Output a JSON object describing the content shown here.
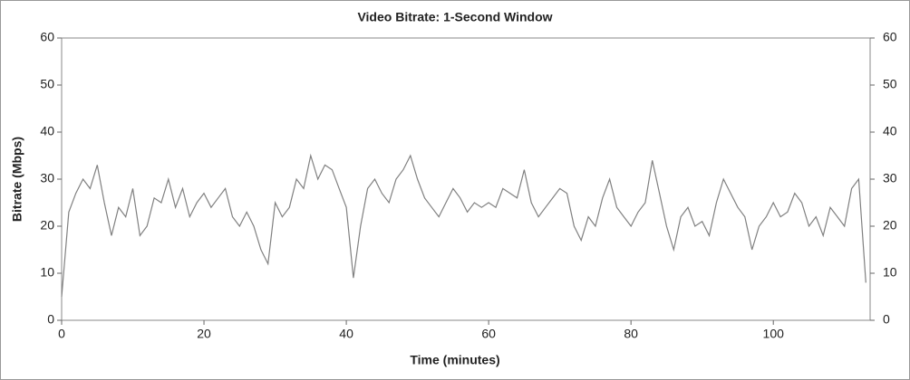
{
  "chart_data": {
    "type": "line",
    "title": "Video Bitrate: 1-Second Window",
    "xlabel": "Time (minutes)",
    "ylabel": "Bitrate (Mbps)",
    "x": [
      0,
      1,
      2,
      3,
      4,
      5,
      6,
      7,
      8,
      9,
      10,
      11,
      12,
      13,
      14,
      15,
      16,
      17,
      18,
      19,
      20,
      21,
      22,
      23,
      24,
      25,
      26,
      27,
      28,
      29,
      30,
      31,
      32,
      33,
      34,
      35,
      36,
      37,
      38,
      39,
      40,
      41,
      42,
      43,
      44,
      45,
      46,
      47,
      48,
      49,
      50,
      51,
      52,
      53,
      54,
      55,
      56,
      57,
      58,
      59,
      60,
      61,
      62,
      63,
      64,
      65,
      66,
      67,
      68,
      69,
      70,
      71,
      72,
      73,
      74,
      75,
      76,
      77,
      78,
      79,
      80,
      81,
      82,
      83,
      84,
      85,
      86,
      87,
      88,
      89,
      90,
      91,
      92,
      93,
      94,
      95,
      96,
      97,
      98,
      99,
      100,
      101,
      102,
      103,
      104,
      105,
      106,
      107,
      108,
      109,
      110,
      111,
      112,
      113
    ],
    "series": [
      {
        "name": "Bitrate",
        "color": "#808080",
        "values": [
          5,
          23,
          27,
          30,
          28,
          33,
          25,
          18,
          24,
          22,
          28,
          18,
          20,
          26,
          25,
          30,
          24,
          28,
          22,
          25,
          27,
          24,
          26,
          28,
          22,
          20,
          23,
          20,
          15,
          12,
          25,
          22,
          24,
          30,
          28,
          35,
          30,
          33,
          32,
          28,
          24,
          9,
          20,
          28,
          30,
          27,
          25,
          30,
          32,
          35,
          30,
          26,
          24,
          22,
          25,
          28,
          26,
          23,
          25,
          24,
          25,
          24,
          28,
          27,
          26,
          32,
          25,
          22,
          24,
          26,
          28,
          27,
          20,
          17,
          22,
          20,
          26,
          30,
          24,
          22,
          20,
          23,
          25,
          34,
          27,
          20,
          15,
          22,
          24,
          20,
          21,
          18,
          25,
          30,
          27,
          24,
          22,
          15,
          20,
          22,
          25,
          22,
          23,
          27,
          25,
          20,
          22,
          18,
          24,
          22,
          20,
          28,
          30,
          8
        ]
      }
    ],
    "xlim": [
      0,
      113.6
    ],
    "xticks": [
      0,
      20,
      40,
      60,
      80,
      100
    ],
    "ylim": [
      0,
      60
    ],
    "yticks": [
      0,
      10,
      20,
      30,
      40,
      50,
      60
    ],
    "y2lim": [
      0,
      60
    ],
    "y2ticks": [
      0,
      10,
      20,
      30,
      40,
      50,
      60
    ]
  }
}
